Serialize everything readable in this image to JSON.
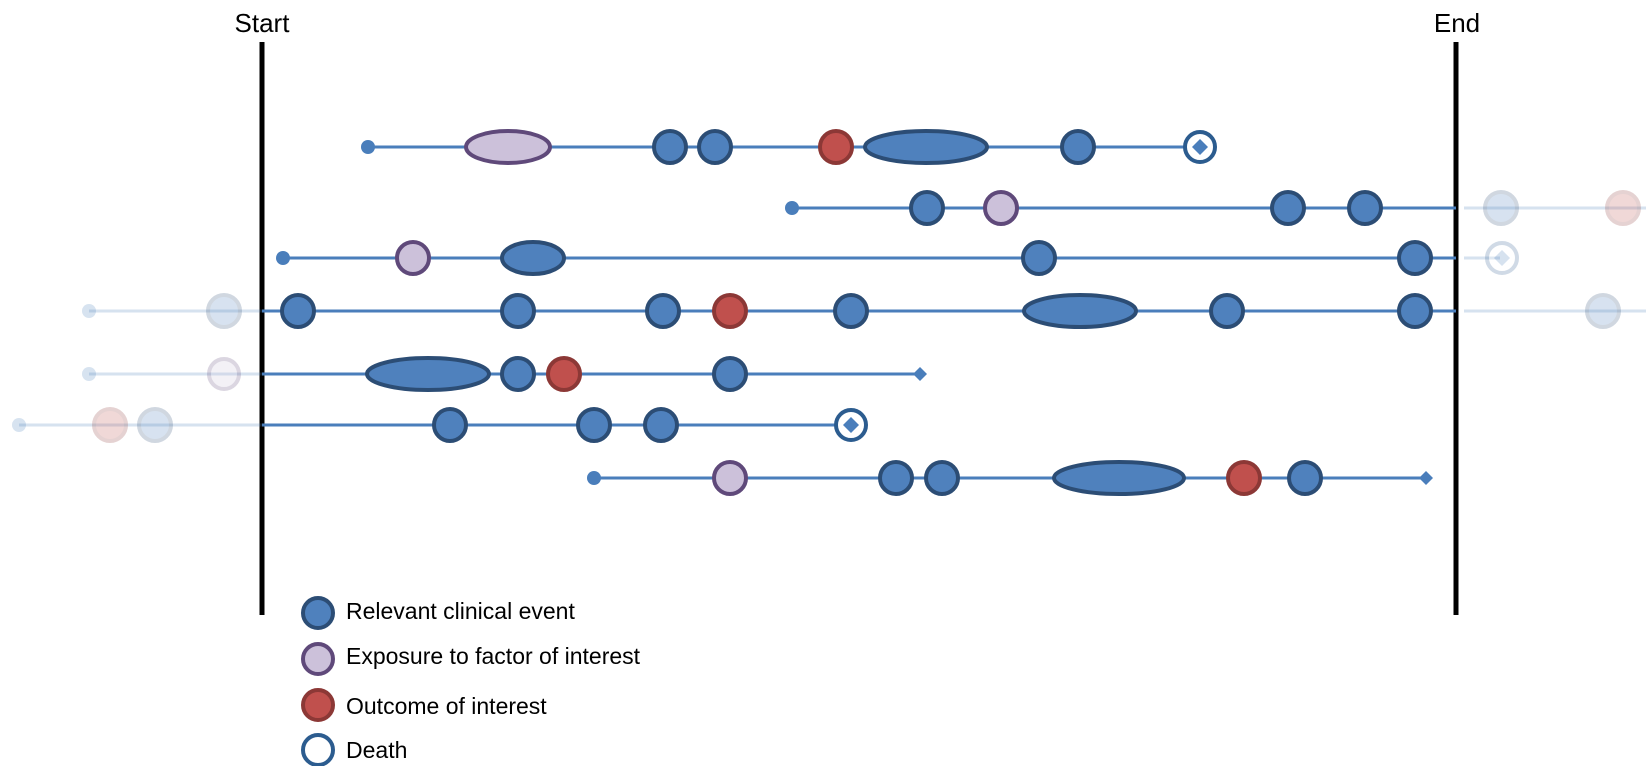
{
  "boundaries": {
    "start_label": "Start",
    "end_label": "End"
  },
  "legend": {
    "items": [
      {
        "key": "clinical",
        "label": "Relevant clinical event"
      },
      {
        "key": "exposure",
        "label": "Exposure to factor of interest"
      },
      {
        "key": "outcome",
        "label": "Outcome of interest"
      },
      {
        "key": "death",
        "label": "Death"
      }
    ]
  },
  "colors": {
    "line": "#4A7EBB",
    "clinical_fill": "#4F81BD",
    "clinical_stroke": "#2C4D75",
    "exposure_fill": "#CCC1DA",
    "exposure_stroke": "#5F497A",
    "outcome_fill": "#C0504D",
    "outcome_stroke": "#8C3836",
    "death_stroke": "#2C5C8F",
    "boundary": "#000000"
  }
}
